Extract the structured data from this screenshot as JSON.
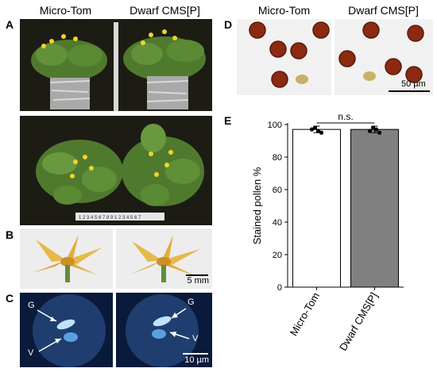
{
  "panel_letters": {
    "a": "A",
    "b": "B",
    "c": "C",
    "d": "D",
    "e": "E"
  },
  "headers": {
    "left_col_1": "Micro-Tom",
    "left_col_2": "Dwarf CMS[P]",
    "right_col_1": "Micro-Tom",
    "right_col_2": "Dwarf CMS[P]"
  },
  "scale_bars": {
    "b": "5 mm",
    "c": "10 µm",
    "d": "50 µm"
  },
  "pollen_labels": {
    "generative": "G",
    "vegetative": "V"
  },
  "ruler_digits": "1 2 3 4 5 6 7 8 9 1 2 3 4 5 6 7",
  "colors": {
    "bar_micro_tom": "#ffffff",
    "bar_dwarf": "#808080",
    "photo_dark_bg": "#1c1c14",
    "microscopy_bg": "#0a1a3a",
    "pollen_grain": "#8b2a10",
    "flower_petal": "#e8b84a"
  },
  "chart_data": {
    "type": "bar",
    "categories": [
      "Micro-Tom",
      "Dwarf CMS[P]"
    ],
    "values": [
      97,
      97
    ],
    "error": [
      2,
      2
    ],
    "points": [
      [
        97,
        98,
        96,
        95
      ],
      [
        96,
        98,
        97,
        95
      ]
    ],
    "ylabel": "Stained pollen %",
    "ylim": [
      0,
      100
    ],
    "yticks": [
      0,
      20,
      40,
      60,
      80,
      100
    ],
    "significance": "n.s."
  }
}
